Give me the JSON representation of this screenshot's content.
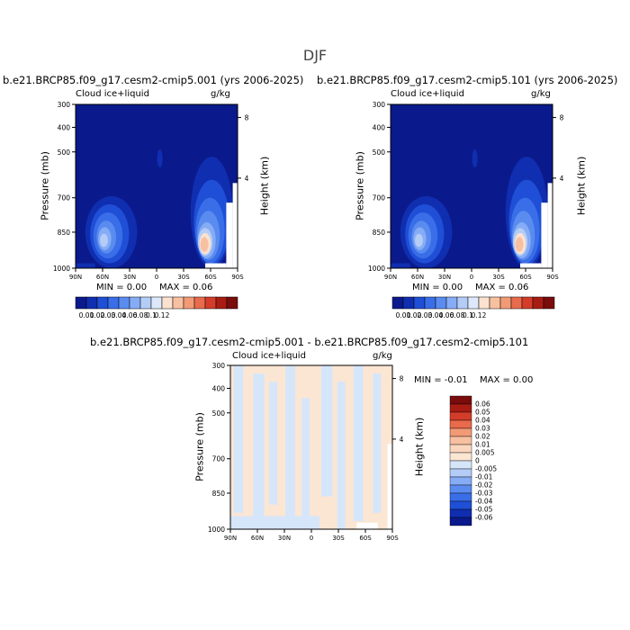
{
  "figure_title": "DJF",
  "chart_data": [
    {
      "type": "heatmap",
      "panel": "top-left",
      "title": "b.e21.BRCP85.f09_g17.cesm2-cmip5.001 (yrs 2006-2025)",
      "field_label": "Cloud ice+liquid",
      "units": "g/kg",
      "xlabel": "",
      "ylabel": "Pressure (mb)",
      "y2label": "Height (km)",
      "x_ticks": [
        "90N",
        "60N",
        "30N",
        "0",
        "30S",
        "60S",
        "90S"
      ],
      "y_ticks": [
        "300",
        "400",
        "500",
        "700",
        "850",
        "1000"
      ],
      "y2_ticks": [
        "8",
        "4"
      ],
      "min_text": "MIN =    0.00",
      "max_text": "MAX =    0.06",
      "colorbar_labels": [
        "0.01",
        "0.02",
        "0.03",
        "0.04",
        "0.06",
        "0.08",
        "0.1",
        "0.12"
      ],
      "colorbar_position": "bottom"
    },
    {
      "type": "heatmap",
      "panel": "top-right",
      "title": "b.e21.BRCP85.f09_g17.cesm2-cmip5.101 (yrs 2006-2025)",
      "field_label": "Cloud ice+liquid",
      "units": "g/kg",
      "xlabel": "",
      "ylabel": "Pressure (mb)",
      "y2label": "Height (km)",
      "x_ticks": [
        "90N",
        "60N",
        "30N",
        "0",
        "30S",
        "60S",
        "90S"
      ],
      "y_ticks": [
        "300",
        "400",
        "500",
        "700",
        "850",
        "1000"
      ],
      "y2_ticks": [
        "8",
        "4"
      ],
      "min_text": "MIN =    0.00",
      "max_text": "MAX =    0.06",
      "colorbar_labels": [
        "0.01",
        "0.02",
        "0.03",
        "0.04",
        "0.06",
        "0.08",
        "0.1",
        "0.12"
      ],
      "colorbar_position": "bottom"
    },
    {
      "type": "heatmap",
      "panel": "bottom",
      "title": "b.e21.BRCP85.f09_g17.cesm2-cmip5.001 - b.e21.BRCP85.f09_g17.cesm2-cmip5.101",
      "field_label": "Cloud ice+liquid",
      "units": "g/kg",
      "xlabel": "",
      "ylabel": "Pressure (mb)",
      "y2label": "Height (km)",
      "x_ticks": [
        "90N",
        "60N",
        "30N",
        "0",
        "30S",
        "60S",
        "90S"
      ],
      "y_ticks": [
        "300",
        "400",
        "500",
        "700",
        "850",
        "1000"
      ],
      "y2_ticks": [
        "8",
        "4"
      ],
      "min_text": "MIN =   -0.01",
      "max_text": "MAX =    0.00",
      "colorbar_labels": [
        "0.06",
        "0.05",
        "0.04",
        "0.03",
        "0.02",
        "0.01",
        "0.005",
        "0",
        "-0.005",
        "-0.01",
        "-0.02",
        "-0.03",
        "-0.04",
        "-0.05",
        "-0.06"
      ],
      "colorbar_position": "right"
    }
  ],
  "colors": {
    "seq": [
      "#0a1a8c",
      "#102eb0",
      "#1f4fd6",
      "#3a6ee8",
      "#5a8cf0",
      "#86acf5",
      "#b4cdf7",
      "#dde8fa",
      "#fbe2d0",
      "#f7c0a0",
      "#f29a76",
      "#e96a4c",
      "#d43c2a",
      "#a81c14",
      "#7a0c0c"
    ],
    "diff_bg": "#fbe6d4",
    "diff_neg": "#d6e6fa",
    "mask": "#ffffff"
  }
}
